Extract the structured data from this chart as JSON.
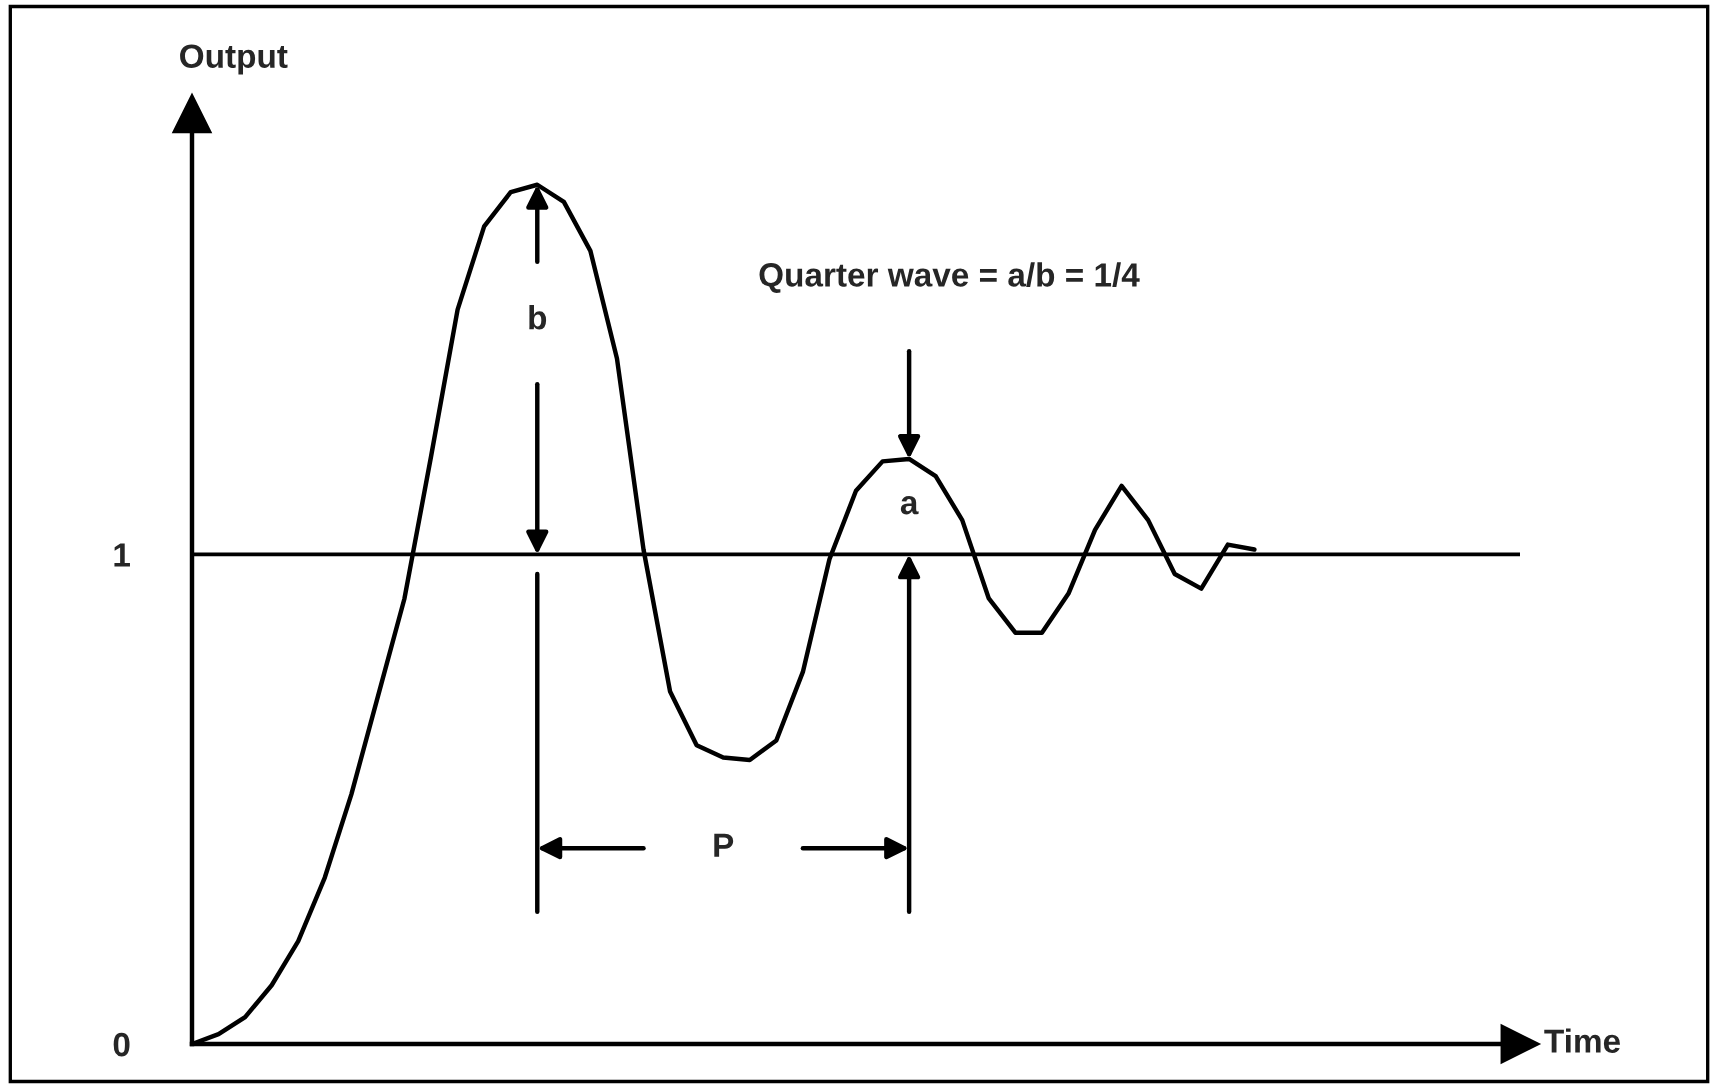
{
  "chart_data": {
    "type": "line",
    "xlabel": "Time",
    "ylabel": "Output",
    "categories": [
      null,
      null,
      null,
      null,
      null,
      null,
      null,
      null,
      null,
      null,
      null,
      null,
      null,
      null,
      null,
      null,
      null,
      null,
      null,
      null,
      null,
      null,
      null,
      null,
      null,
      null,
      null,
      null,
      null,
      null,
      null,
      null,
      null,
      null,
      null,
      null,
      null,
      null,
      null,
      null,
      null,
      null,
      null,
      null,
      null,
      null,
      null,
      null,
      null,
      null,
      null
    ],
    "series": [
      {
        "color": "#000000",
        "values": [
          0,
          0.02,
          0.055,
          0.12,
          0.21,
          0.34,
          0.51,
          0.71,
          0.91,
          1.2,
          1.5,
          1.67,
          1.74,
          1.755,
          1.72,
          1.62,
          1.4,
          1.01,
          0.72,
          0.61,
          0.585,
          0.58,
          0.62,
          0.76,
          0.99,
          1.13,
          1.19,
          1.195,
          1.16,
          1.07,
          0.91,
          0.84,
          0.84,
          0.92,
          1.05,
          1.14,
          1.07,
          0.96,
          0.93,
          1.02,
          1.01,
          null,
          null,
          null,
          null,
          null,
          null,
          null,
          null,
          null,
          null
        ]
      }
    ],
    "ylim": [
      0,
      1.9
    ],
    "yticks": [
      0,
      1
    ],
    "ref_lines": [
      {
        "axis": "y",
        "value": 1,
        "color": "#000000"
      }
    ],
    "annotations": [
      "Quarter wave = a/b = 1/4",
      "a",
      "b",
      "P"
    ]
  }
}
